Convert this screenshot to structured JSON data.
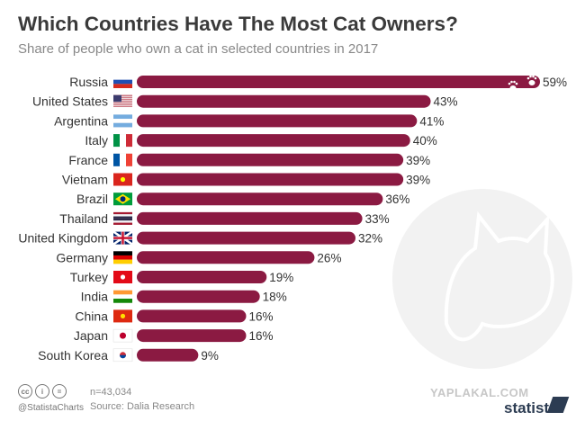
{
  "title": "Which Countries Have The Most Cat Owners?",
  "subtitle": "Share of people who own a cat in selected countries in 2017",
  "colors": {
    "bar": "#8b1a42",
    "text": "#333333",
    "title": "#3a3a3a"
  },
  "chart_data": {
    "type": "bar",
    "orientation": "horizontal",
    "categories": [
      "Russia",
      "United States",
      "Argentina",
      "Italy",
      "France",
      "Vietnam",
      "Brazil",
      "Thailand",
      "United Kingdom",
      "Germany",
      "Turkey",
      "India",
      "China",
      "Japan",
      "South Korea"
    ],
    "values": [
      59,
      43,
      41,
      40,
      39,
      39,
      36,
      33,
      32,
      26,
      19,
      18,
      16,
      16,
      9
    ],
    "value_labels": [
      "59%",
      "43%",
      "41%",
      "40%",
      "39%",
      "39%",
      "36%",
      "33%",
      "32%",
      "26%",
      "19%",
      "18%",
      "16%",
      "16%",
      "9%"
    ],
    "xlim": [
      0,
      59
    ],
    "grid": false,
    "legend": "none"
  },
  "footer": {
    "cc_icons": [
      "cc",
      "i",
      "="
    ],
    "handle": "@StatistaCharts",
    "sample": "n=43,034",
    "source": "Source: Dalia Research",
    "watermark": "YAPLAKAL.COM",
    "brand": "statista"
  }
}
